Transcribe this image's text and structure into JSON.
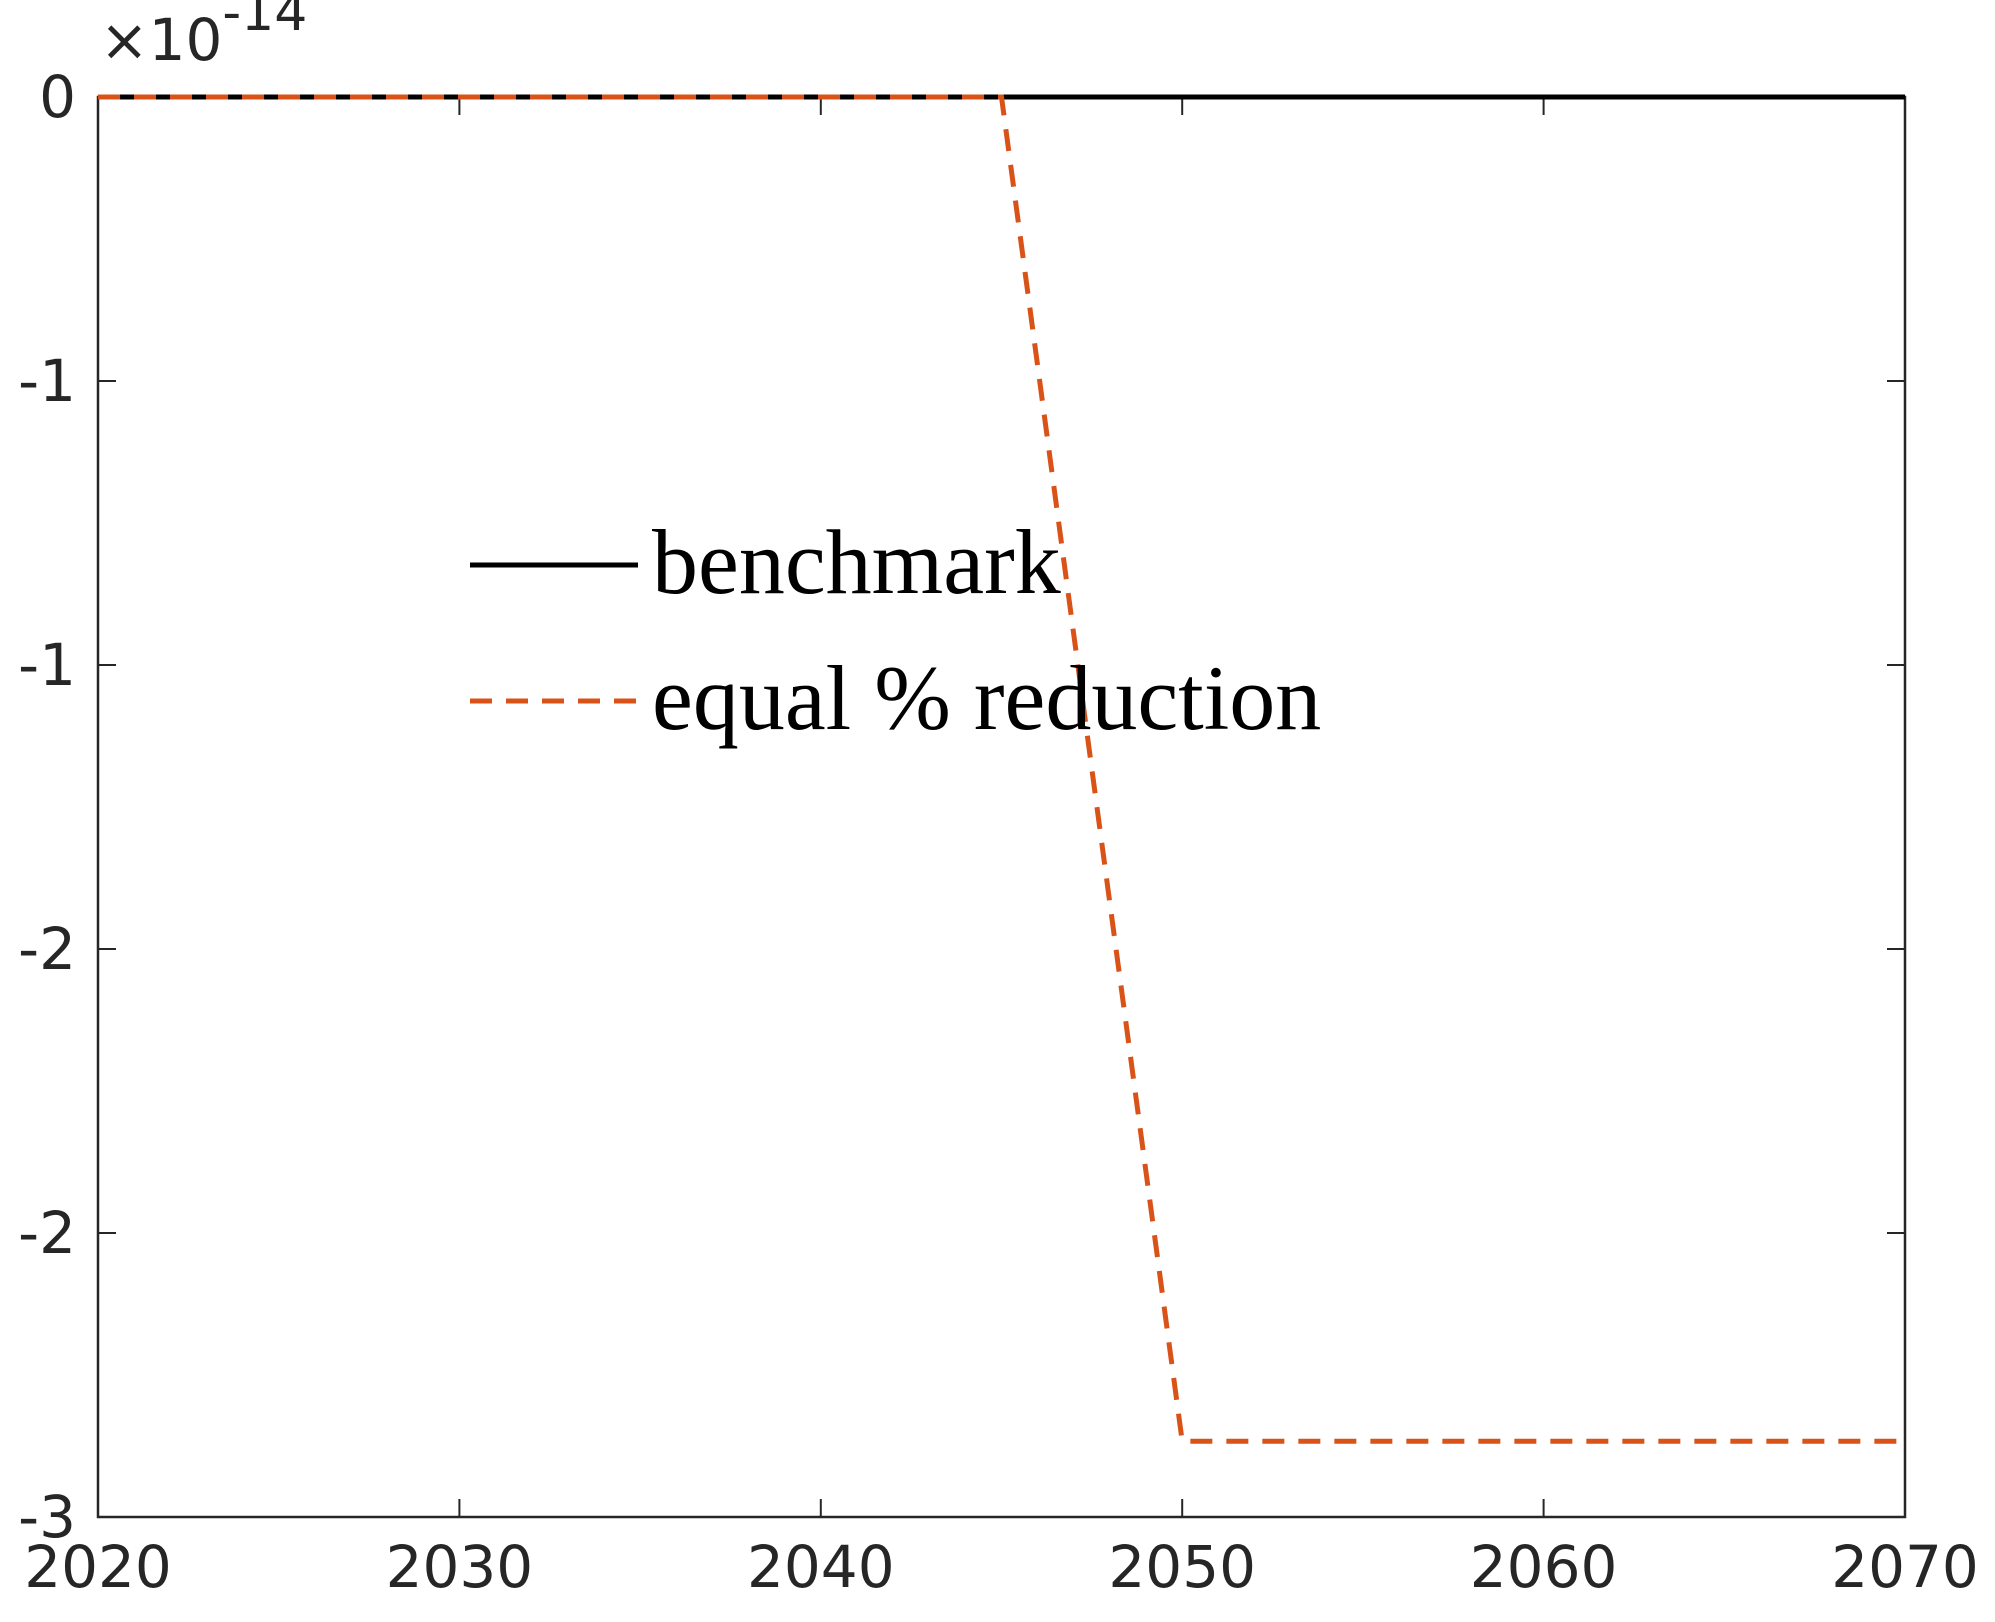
{
  "chart_data": {
    "type": "line",
    "x": [
      2020,
      2045,
      2050,
      2070
    ],
    "series": [
      {
        "name": "benchmark",
        "color": "#000000",
        "dash": "solid",
        "values": [
          0,
          0,
          0,
          0
        ]
      },
      {
        "name": "equal % reduction",
        "color": "#d95319",
        "dash": "dashed",
        "values": [
          0,
          0,
          -2.84,
          -2.84
        ]
      }
    ],
    "xlim": [
      2020,
      2070
    ],
    "xticks": [
      2020,
      2030,
      2040,
      2050,
      2060,
      2070
    ],
    "ylim": [
      -3,
      0
    ],
    "yticks": [
      0,
      {
        "value": -0.6,
        "label": "-1"
      },
      {
        "value": -1.2,
        "label": "-1"
      },
      {
        "value": -1.8,
        "label": "-2"
      },
      {
        "value": -2.4,
        "label": "-2"
      },
      -3
    ],
    "y_multiplier": {
      "base": "×10",
      "exponent": "-14"
    },
    "legend": "west",
    "grid": false
  }
}
